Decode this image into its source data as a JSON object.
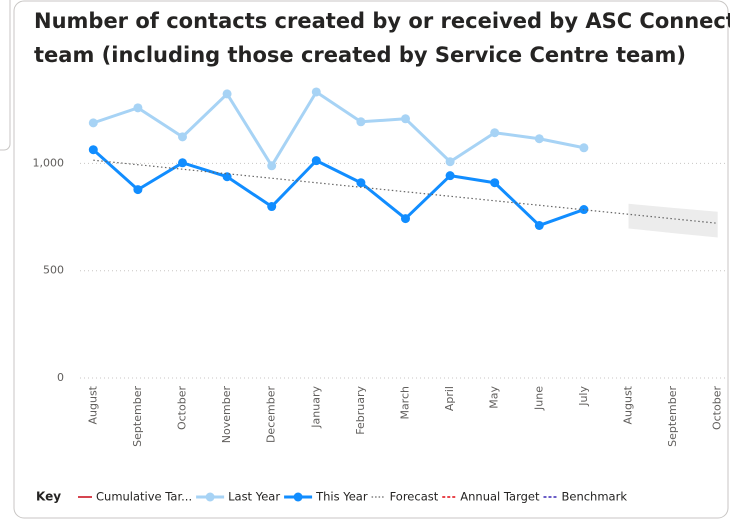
{
  "chart_data": {
    "type": "line",
    "title": [
      "Number of contacts created by or received by ASC Connect",
      "team (including those created by Service Centre team)"
    ],
    "categories": [
      "August",
      "September",
      "October",
      "November",
      "December",
      "January",
      "February",
      "March",
      "April",
      "May",
      "June",
      "July",
      "August",
      "September",
      "October"
    ],
    "series": [
      {
        "name": "Last Year",
        "color": "#a7d3f5",
        "values": [
          1189,
          1259,
          1124,
          1324,
          989,
          1333,
          1194,
          1208,
          1008,
          1143,
          1115,
          1073,
          null,
          null,
          null
        ]
      },
      {
        "name": "This Year",
        "color": "#118dff",
        "values": [
          1064,
          878,
          1003,
          938,
          799,
          1013,
          910,
          743,
          943,
          910,
          711,
          785,
          null,
          null,
          null
        ]
      },
      {
        "name": "Forecast",
        "color": "#666666",
        "style": "dotted",
        "values": [
          1015,
          994,
          973,
          952,
          931,
          910,
          889,
          868,
          847,
          826,
          805,
          784,
          763,
          742,
          721
        ]
      }
    ],
    "forecast_band": {
      "color": "#ececec",
      "upper": [
        null,
        null,
        null,
        null,
        null,
        null,
        null,
        null,
        null,
        null,
        null,
        null,
        812,
        793,
        775
      ],
      "lower": [
        null,
        null,
        null,
        null,
        null,
        null,
        null,
        null,
        null,
        null,
        null,
        null,
        697,
        675,
        655
      ]
    },
    "ylim": [
      0,
      1400
    ],
    "yticks": [
      0,
      500,
      {
        "value": 1000,
        "label": "1,000"
      }
    ],
    "grid": true,
    "legend_title": "Key",
    "legend": [
      {
        "name": "Cumulative Tar...",
        "color": "#d64550",
        "style": "solid"
      },
      {
        "name": "Last Year",
        "color": "#a7d3f5",
        "style": "marker"
      },
      {
        "name": "This Year",
        "color": "#118dff",
        "style": "marker"
      },
      {
        "name": "Forecast",
        "color": "#666666",
        "style": "dotted"
      },
      {
        "name": "Annual Target",
        "color": "#e8474e",
        "style": "dashed"
      },
      {
        "name": "Benchmark",
        "color": "#6b5ec7",
        "style": "dashed"
      }
    ]
  }
}
